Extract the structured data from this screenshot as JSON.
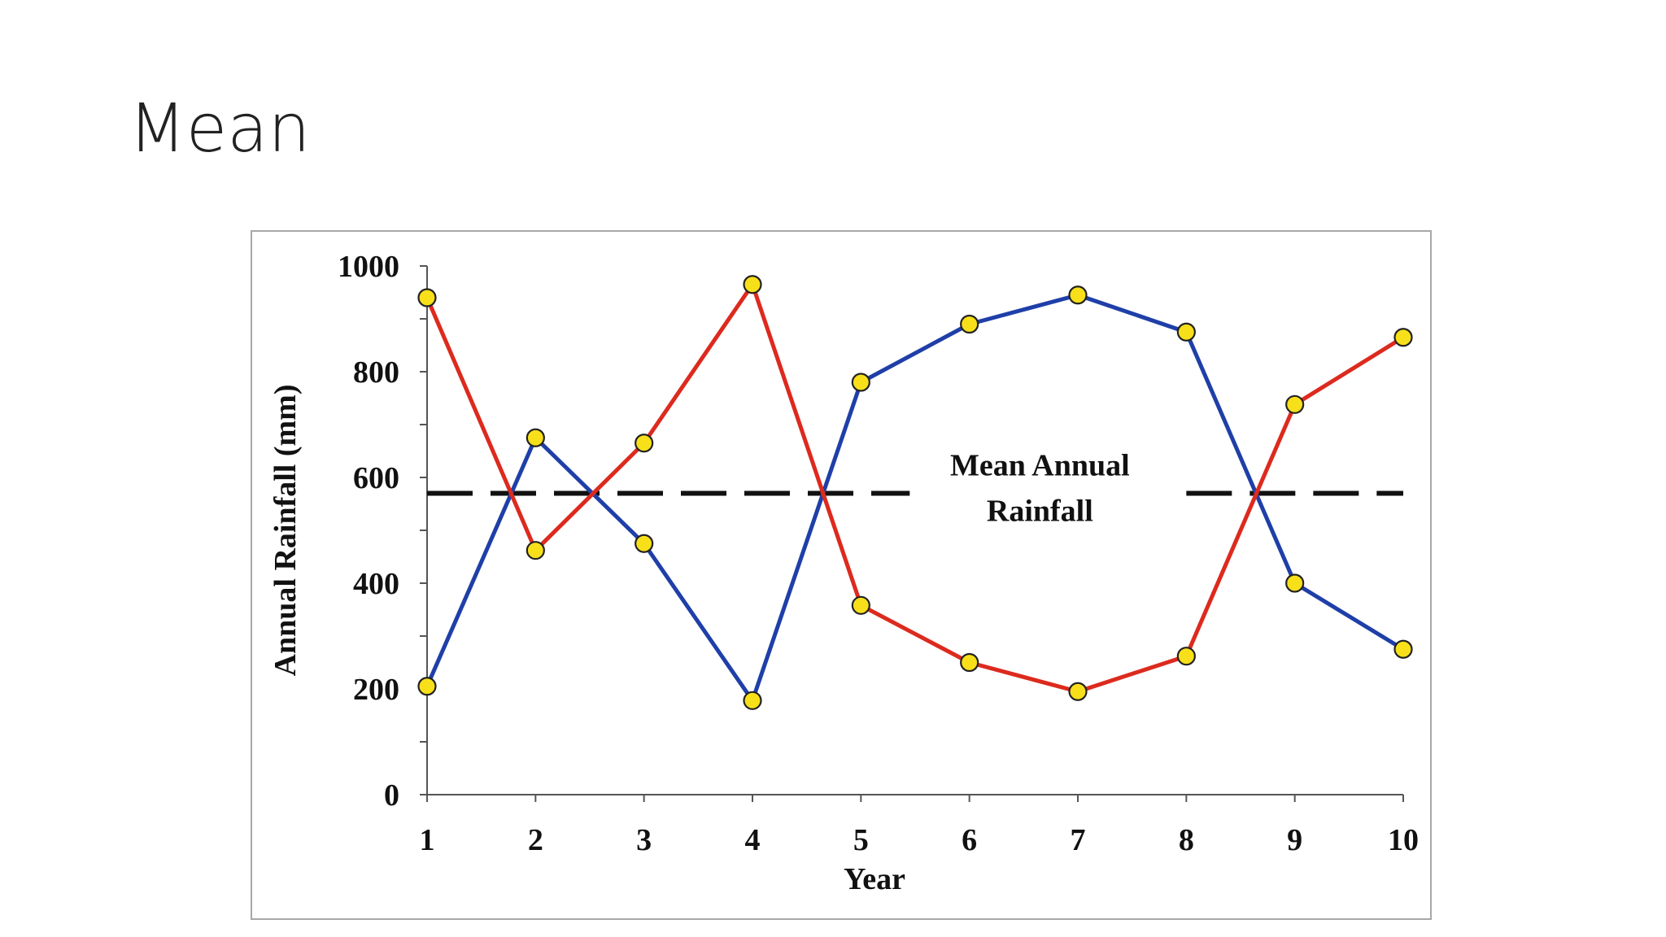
{
  "slide": {
    "title": "Mean"
  },
  "chart_data": {
    "type": "line",
    "title": "",
    "xlabel": "Year",
    "ylabel": "Annual Rainfall (mm)",
    "x": [
      1,
      2,
      3,
      4,
      5,
      6,
      7,
      8,
      9,
      10
    ],
    "xlim": [
      1,
      10
    ],
    "ylim": [
      0,
      1000
    ],
    "yticks": [
      0,
      200,
      400,
      600,
      800,
      1000
    ],
    "grid": false,
    "legend": "none",
    "marker_color": "#f7e01a",
    "series": [
      {
        "color": "#1f3fa8",
        "values": [
          205,
          675,
          475,
          178,
          780,
          890,
          945,
          875,
          400,
          275
        ]
      },
      {
        "color": "#dd2a1e",
        "values": [
          940,
          462,
          665,
          965,
          358,
          250,
          195,
          262,
          738,
          865
        ]
      }
    ],
    "reference_line": {
      "value": 570,
      "style": "dashed",
      "color": "#111111"
    },
    "annotation": {
      "lines": [
        "Mean Annual",
        "Rainfall"
      ]
    }
  }
}
